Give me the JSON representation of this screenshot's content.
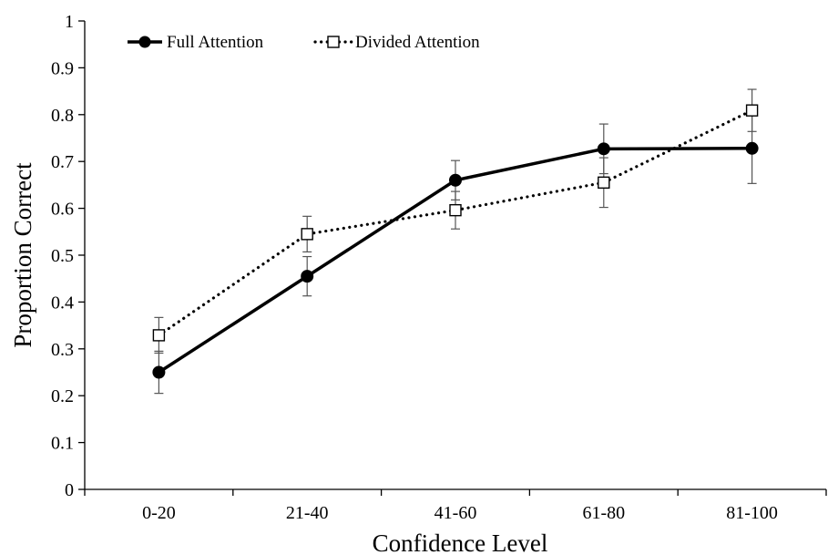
{
  "chart_data": {
    "type": "line",
    "title": "",
    "xlabel": "Confidence Level",
    "ylabel": "Proportion Correct",
    "categories": [
      "0-20",
      "21-40",
      "41-60",
      "61-80",
      "81-100"
    ],
    "ylim": [
      0,
      1
    ],
    "yticks": [
      "0",
      "0.1",
      "0.2",
      "0.3",
      "0.4",
      "0.5",
      "0.6",
      "0.7",
      "0.8",
      "0.9",
      "1"
    ],
    "grid": false,
    "legend": "top-left",
    "series": [
      {
        "name": "Full Attention",
        "line_style": "solid",
        "marker": "filled-circle",
        "color": "#000000",
        "values": [
          0.25,
          0.455,
          0.66,
          0.727,
          0.728
        ],
        "error": [
          0.045,
          0.042,
          0.042,
          0.053,
          0.075
        ]
      },
      {
        "name": "Divided Attention",
        "line_style": "dotted",
        "marker": "open-square",
        "color": "#000000",
        "values": [
          0.329,
          0.545,
          0.596,
          0.655,
          0.809
        ],
        "error": [
          0.038,
          0.038,
          0.04,
          0.053,
          0.045
        ]
      }
    ]
  }
}
